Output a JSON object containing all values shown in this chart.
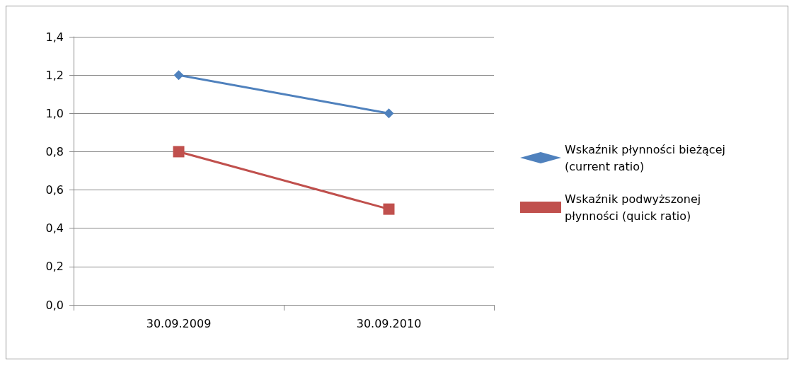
{
  "chart_data": {
    "type": "line",
    "categories": [
      "30.09.2009",
      "30.09.2010"
    ],
    "series": [
      {
        "name": "Wskaźnik płynności bieżącej (current ratio)",
        "color": "#4f81bd",
        "marker": "diamond",
        "values": [
          1.2,
          1.0
        ]
      },
      {
        "name": "Wskaźnik podwyższonej płynności (quick ratio)",
        "color": "#c0504d",
        "marker": "square",
        "values": [
          0.8,
          0.5
        ]
      }
    ],
    "ylim": [
      0,
      1.4
    ],
    "yticks": [
      {
        "value": 0,
        "label": "0,0"
      },
      {
        "value": 0.2,
        "label": "0,2"
      },
      {
        "value": 0.4,
        "label": "0,4"
      },
      {
        "value": 0.6,
        "label": "0,6"
      },
      {
        "value": 0.8,
        "label": "0,8"
      },
      {
        "value": 1.0,
        "label": "1,0"
      },
      {
        "value": 1.2,
        "label": "1,2"
      },
      {
        "value": 1.4,
        "label": "1,4"
      }
    ],
    "grid": "y",
    "legend": "right",
    "line_style": "solid"
  }
}
